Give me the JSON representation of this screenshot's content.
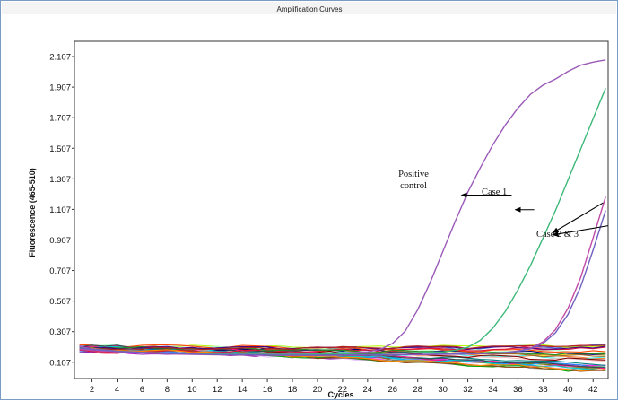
{
  "chart_data": {
    "type": "line",
    "title": "Amplification Curves",
    "xlabel": "Cycles",
    "ylabel": "Fluorescence (465-510)",
    "xlim": [
      0.6,
      43.2
    ],
    "ylim": [
      0.0,
      2.207
    ],
    "x_ticks": [
      "2",
      "4",
      "6",
      "8",
      "10",
      "12",
      "14",
      "16",
      "18",
      "20",
      "22",
      "24",
      "26",
      "28",
      "30",
      "32",
      "34",
      "36",
      "38",
      "40",
      "42"
    ],
    "y_ticks": [
      "0.107",
      "0.307",
      "0.507",
      "0.707",
      "0.907",
      "1.107",
      "1.307",
      "1.507",
      "1.707",
      "1.907",
      "2.107"
    ],
    "grid": false,
    "series": [
      {
        "label": "Positive control",
        "color": "#9a5ab8",
        "x": [
          1,
          2,
          4,
          6,
          8,
          10,
          12,
          14,
          16,
          18,
          20,
          22,
          24,
          25,
          26,
          27,
          28,
          29,
          30,
          31,
          32,
          33,
          34,
          35,
          36,
          37,
          38,
          39,
          40,
          41,
          42,
          43
        ],
        "y": [
          0.21,
          0.195,
          0.18,
          0.172,
          0.168,
          0.165,
          0.163,
          0.162,
          0.162,
          0.163,
          0.165,
          0.168,
          0.175,
          0.19,
          0.23,
          0.31,
          0.45,
          0.63,
          0.83,
          1.03,
          1.22,
          1.38,
          1.53,
          1.66,
          1.77,
          1.86,
          1.92,
          1.96,
          2.01,
          2.05,
          2.07,
          2.085
        ]
      },
      {
        "label": "Case 1",
        "color": "#3cb878",
        "x": [
          1,
          2,
          4,
          6,
          8,
          10,
          12,
          14,
          16,
          18,
          20,
          22,
          24,
          26,
          28,
          30,
          31,
          32,
          33,
          34,
          35,
          36,
          37,
          38,
          39,
          40,
          41,
          42,
          43
        ],
        "y": [
          0.2,
          0.19,
          0.178,
          0.17,
          0.165,
          0.162,
          0.16,
          0.158,
          0.158,
          0.158,
          0.16,
          0.162,
          0.165,
          0.168,
          0.17,
          0.175,
          0.185,
          0.205,
          0.25,
          0.33,
          0.44,
          0.58,
          0.74,
          0.92,
          1.1,
          1.3,
          1.5,
          1.7,
          1.9
        ]
      },
      {
        "label": "Case 2 & 3",
        "color": "#c04aa6",
        "x": [
          1,
          2,
          4,
          6,
          8,
          10,
          12,
          14,
          16,
          18,
          20,
          22,
          24,
          26,
          28,
          30,
          32,
          34,
          35,
          36,
          37,
          38,
          39,
          40,
          41,
          42,
          43
        ],
        "y": [
          0.19,
          0.185,
          0.175,
          0.168,
          0.162,
          0.158,
          0.155,
          0.153,
          0.152,
          0.151,
          0.151,
          0.152,
          0.153,
          0.155,
          0.157,
          0.158,
          0.16,
          0.165,
          0.17,
          0.18,
          0.2,
          0.24,
          0.32,
          0.46,
          0.66,
          0.92,
          1.19
        ]
      },
      {
        "label": "Case 2 & 3",
        "color": "#7060c0",
        "x": [
          1,
          2,
          4,
          6,
          8,
          10,
          12,
          14,
          16,
          18,
          20,
          22,
          24,
          26,
          28,
          30,
          32,
          34,
          35,
          36,
          37,
          38,
          39,
          40,
          41,
          42,
          43
        ],
        "y": [
          0.2,
          0.19,
          0.178,
          0.17,
          0.164,
          0.16,
          0.157,
          0.155,
          0.154,
          0.153,
          0.153,
          0.154,
          0.155,
          0.157,
          0.158,
          0.16,
          0.162,
          0.166,
          0.17,
          0.178,
          0.195,
          0.23,
          0.3,
          0.42,
          0.6,
          0.84,
          1.1
        ]
      }
    ],
    "annotations": [
      {
        "text_lines": [
          "Positive",
          "control"
        ],
        "arrow_from": [
          35.5,
          1.2
        ],
        "arrow_to": [
          31.5,
          1.2
        ]
      },
      {
        "text_lines": [
          "Case 1"
        ],
        "arrow_from": [
          37.3,
          1.105
        ],
        "arrow_to": [
          35.8,
          1.105
        ]
      },
      {
        "text_lines": [
          "Case 2 & 3"
        ],
        "arrow_from": [
          42.8,
          1.15
        ],
        "arrow_to": [
          38.8,
          0.955
        ]
      },
      {
        "text_lines": [],
        "arrow_from": [
          43.2,
          1.0
        ],
        "arrow_to": [
          38.8,
          0.94
        ]
      }
    ]
  },
  "background_curves": {
    "count": 30,
    "colors": [
      "#e6194b",
      "#3cb44b",
      "#ffe119",
      "#4363d8",
      "#f58231",
      "#911eb4",
      "#46f0f0",
      "#f032e6",
      "#bcf60c",
      "#fabebe",
      "#008080",
      "#e6beff",
      "#9a6324",
      "#800000",
      "#aaffc3",
      "#808000",
      "#000075",
      "#808080",
      "#ff4500",
      "#00a000",
      "#1e90ff",
      "#ff1493",
      "#00ced1",
      "#8b4513",
      "#2f4f4f",
      "#dc143c",
      "#228b22",
      "#4b0082",
      "#ff8c00",
      "#b22222"
    ]
  }
}
